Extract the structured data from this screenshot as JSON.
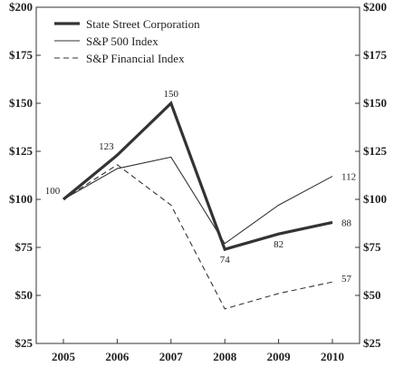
{
  "chart_data": {
    "type": "line",
    "categories": [
      "2005",
      "2006",
      "2007",
      "2008",
      "2009",
      "2010"
    ],
    "series": [
      {
        "name": "State Street Corporation",
        "values": [
          100,
          123,
          150,
          74,
          82,
          88
        ],
        "style": "solid-thick",
        "color": "#333333"
      },
      {
        "name": "S&P 500 Index",
        "values": [
          100,
          116,
          122,
          77,
          97,
          112
        ],
        "style": "solid-thin",
        "color": "#333333"
      },
      {
        "name": "S&P Financial Index",
        "values": [
          100,
          118,
          97,
          43,
          51,
          57
        ],
        "style": "dashed",
        "color": "#333333"
      }
    ],
    "y_ticks": [
      "$200",
      "$175",
      "$150",
      "$125",
      "$100",
      "$75",
      "$50",
      "$25"
    ],
    "ylim": [
      25,
      200
    ],
    "grid": false,
    "legend_position": "top-left",
    "data_labels": [
      {
        "text": "100",
        "series": 0,
        "index": 0,
        "anchor": "above-left"
      },
      {
        "text": "123",
        "series": 0,
        "index": 1,
        "anchor": "above-left"
      },
      {
        "text": "150",
        "series": 0,
        "index": 2,
        "anchor": "above"
      },
      {
        "text": "74",
        "series": 0,
        "index": 3,
        "anchor": "below"
      },
      {
        "text": "82",
        "series": 0,
        "index": 4,
        "anchor": "below"
      },
      {
        "text": "112",
        "series": 1,
        "index": 5,
        "anchor": "right"
      },
      {
        "text": "88",
        "series": 0,
        "index": 5,
        "anchor": "right"
      },
      {
        "text": "57",
        "series": 2,
        "index": 5,
        "anchor": "right"
      }
    ]
  }
}
